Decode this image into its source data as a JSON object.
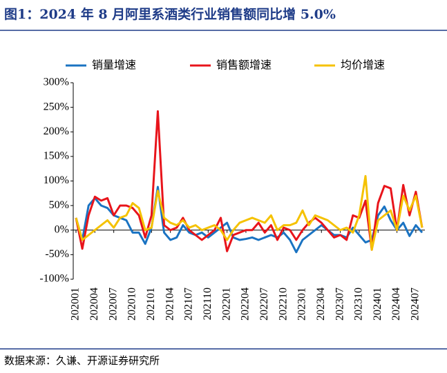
{
  "chart_data": {
    "type": "line",
    "title": "图1：2024 年 8 月阿里系酒类行业销售额同比增 5.0%",
    "source": "数据来源：久谦、开源证券研究所",
    "legend": "top",
    "categories": [
      "202001",
      null,
      null,
      "202004",
      null,
      null,
      "202007",
      null,
      null,
      "202010",
      null,
      null,
      "202101",
      null,
      null,
      "202104",
      null,
      null,
      "202107",
      null,
      null,
      "202110",
      null,
      null,
      "202201",
      null,
      null,
      "202204",
      null,
      null,
      "202207",
      null,
      null,
      "202210",
      null,
      null,
      "202301",
      null,
      null,
      "202304",
      null,
      null,
      "202307",
      null,
      null,
      "202310",
      null,
      null,
      "202401",
      null,
      null,
      "202404",
      null,
      null,
      "202407",
      null
    ],
    "series": [
      {
        "name": "销量增速",
        "color": "#1a73c2",
        "values": [
          25,
          -20,
          50,
          65,
          50,
          45,
          30,
          25,
          20,
          -5,
          -5,
          -28,
          5,
          88,
          -5,
          -20,
          -15,
          10,
          -5,
          -10,
          -5,
          -15,
          -5,
          5,
          15,
          -15,
          -20,
          -18,
          -15,
          -20,
          -15,
          -10,
          -15,
          -5,
          -20,
          -45,
          -20,
          -10,
          0,
          10,
          0,
          -10,
          -10,
          -15,
          5,
          -10,
          -25,
          -20,
          30,
          48,
          20,
          0,
          15,
          -12,
          10,
          -5
        ]
      },
      {
        "name": "销售额增速",
        "color": "#e8141b",
        "values": [
          25,
          -38,
          30,
          68,
          60,
          65,
          30,
          50,
          50,
          45,
          30,
          -15,
          30,
          242,
          10,
          0,
          5,
          25,
          0,
          -10,
          -20,
          -10,
          0,
          25,
          -43,
          -10,
          -5,
          0,
          0,
          15,
          -5,
          10,
          -20,
          5,
          0,
          -20,
          0,
          15,
          25,
          15,
          0,
          -15,
          -10,
          -20,
          30,
          25,
          60,
          -40,
          55,
          90,
          85,
          0,
          92,
          30,
          78,
          5
        ]
      },
      {
        "name": "均价增速",
        "color": "#f5c200",
        "values": [
          25,
          -20,
          -10,
          0,
          10,
          20,
          5,
          25,
          30,
          55,
          45,
          0,
          5,
          80,
          25,
          15,
          10,
          20,
          5,
          10,
          0,
          5,
          10,
          0,
          -20,
          0,
          15,
          20,
          25,
          20,
          15,
          30,
          0,
          10,
          10,
          15,
          40,
          10,
          30,
          25,
          20,
          10,
          0,
          5,
          -5,
          30,
          110,
          -40,
          20,
          30,
          40,
          0,
          70,
          40,
          70,
          5
        ]
      }
    ],
    "ylim": [
      -100,
      300
    ],
    "yticks": [
      {
        "value": -100,
        "label": "-100%"
      },
      {
        "value": -50,
        "label": "-50%"
      },
      {
        "value": 0,
        "label": "0%"
      },
      {
        "value": 50,
        "label": "50%"
      },
      {
        "value": 100,
        "label": "100%"
      },
      {
        "value": 150,
        "label": "150%"
      },
      {
        "value": 200,
        "label": "200%"
      },
      {
        "value": 250,
        "label": "250%"
      },
      {
        "value": 300,
        "label": "300%"
      }
    ]
  }
}
